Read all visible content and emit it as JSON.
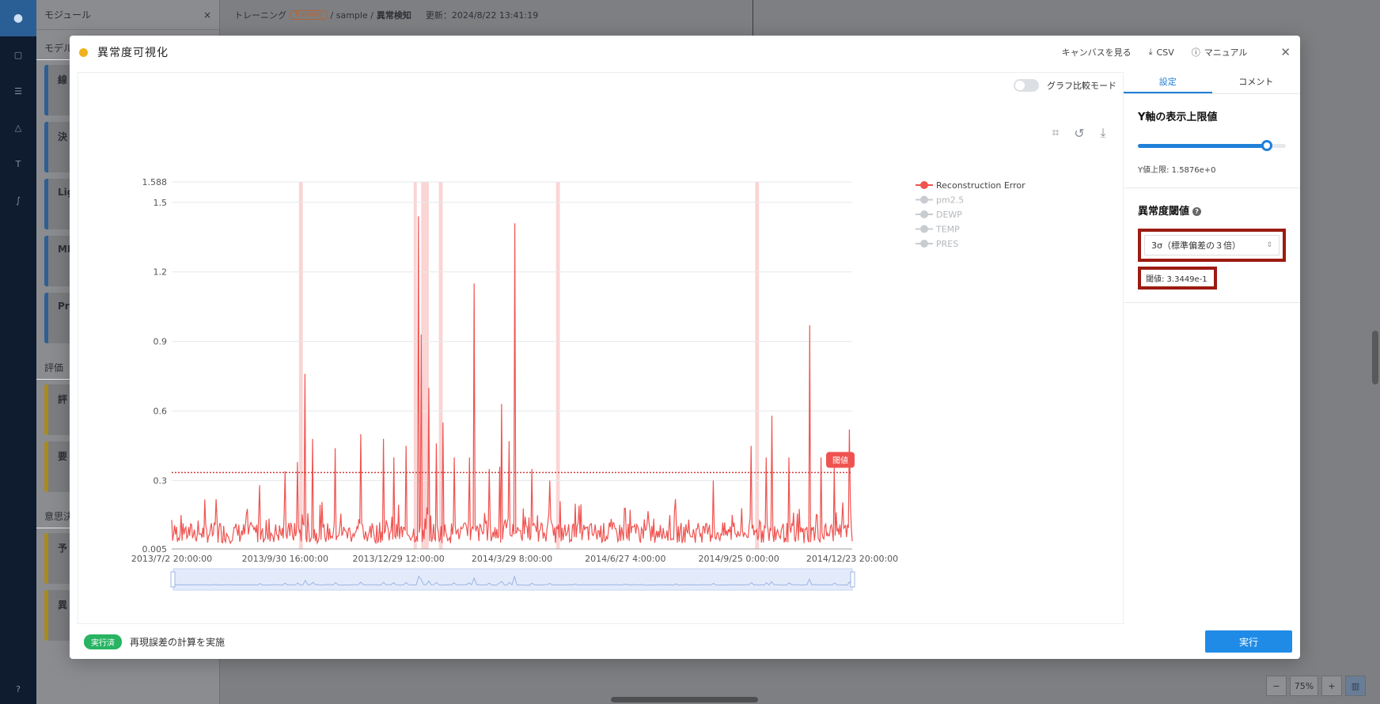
{
  "bg": {
    "sidebar_title": "モジュール",
    "section_model": "モデル",
    "model_cards": [
      "線",
      "決",
      "Lig",
      "ML",
      "Pr"
    ],
    "section_eval": "評価",
    "eval_cards": [
      "評",
      "要"
    ],
    "section_decision": "意思決",
    "decision_cards": [
      "予",
      "異"
    ],
    "breadcrumb_training": "トレーニング",
    "breadcrumb_badge": "Training",
    "breadcrumb_sample": "/ sample /",
    "breadcrumb_current": "異常検知",
    "updated": "更新：2024/8/22 13:41:19",
    "zoom_minus": "−",
    "zoom_pct": "75%",
    "zoom_plus": "+"
  },
  "modal": {
    "title": "異常度可視化",
    "actions": {
      "canvas": "キャンバスを見る",
      "csv": "CSV",
      "manual": "マニュアル"
    },
    "compare_mode": "グラフ比較モード",
    "tabs": [
      "設定",
      "コメント"
    ],
    "ylimit_title": "Y軸の表示上限値",
    "ylimit_value": 0.97,
    "ylimit_label": "Y値上限: 1.5876e+0",
    "threshold_title": "異常度閾値",
    "threshold_select": "3σ（標準偏差の３倍）",
    "threshold_value_label": "閾値: 3.3449e-1",
    "status_badge": "実行済",
    "status_text": "再現誤差の計算を実施",
    "run_button": "実行"
  },
  "chart_data": {
    "type": "line",
    "y_ticks": [
      0.005,
      0.3,
      0.6,
      0.9,
      1.2,
      1.5,
      1.588
    ],
    "y_tick_labels": [
      "0.005",
      "0.3",
      "0.6",
      "0.9",
      "1.2",
      "1.5",
      "1.588"
    ],
    "ylim": [
      0.005,
      1.588
    ],
    "x_tick_labels": [
      "2013/7/2 20:00:00",
      "2013/9/30 16:00:00",
      "2013/12/29 12:00:00",
      "2014/3/29 8:00:00",
      "2014/6/27 4:00:00",
      "2014/9/25 0:00:00",
      "2014/12/23 20:00:00"
    ],
    "x_range_days": [
      0,
      540
    ],
    "threshold": 0.33449,
    "threshold_label": "閾値",
    "legend": [
      "Reconstruction Error",
      "pm2.5",
      "DEWP",
      "TEMP",
      "PRES"
    ],
    "series": [
      {
        "name": "Reconstruction Error",
        "color": "#ef5350",
        "baseline": [
          0.03,
          0.12
        ],
        "peaks": [
          {
            "x": 0,
            "y": 0.13
          },
          {
            "x": 35,
            "y": 0.22
          },
          {
            "x": 70,
            "y": 0.28
          },
          {
            "x": 90,
            "y": 0.34
          },
          {
            "x": 100,
            "y": 0.38
          },
          {
            "x": 106,
            "y": 0.76
          },
          {
            "x": 112,
            "y": 0.48
          },
          {
            "x": 130,
            "y": 0.44
          },
          {
            "x": 150,
            "y": 0.5
          },
          {
            "x": 168,
            "y": 0.48
          },
          {
            "x": 176,
            "y": 0.4
          },
          {
            "x": 186,
            "y": 0.45
          },
          {
            "x": 196,
            "y": 1.44
          },
          {
            "x": 198,
            "y": 0.93
          },
          {
            "x": 204,
            "y": 0.7
          },
          {
            "x": 210,
            "y": 0.46
          },
          {
            "x": 215,
            "y": 0.55
          },
          {
            "x": 224,
            "y": 0.4
          },
          {
            "x": 236,
            "y": 0.4
          },
          {
            "x": 240,
            "y": 1.15
          },
          {
            "x": 252,
            "y": 0.35
          },
          {
            "x": 260,
            "y": 0.36
          },
          {
            "x": 262,
            "y": 0.63
          },
          {
            "x": 268,
            "y": 0.47
          },
          {
            "x": 272,
            "y": 1.41
          },
          {
            "x": 286,
            "y": 0.35
          },
          {
            "x": 300,
            "y": 0.3
          },
          {
            "x": 320,
            "y": 0.2
          },
          {
            "x": 360,
            "y": 0.18
          },
          {
            "x": 400,
            "y": 0.22
          },
          {
            "x": 430,
            "y": 0.3
          },
          {
            "x": 460,
            "y": 0.45
          },
          {
            "x": 472,
            "y": 0.4
          },
          {
            "x": 476,
            "y": 0.58
          },
          {
            "x": 490,
            "y": 0.4
          },
          {
            "x": 506,
            "y": 0.97
          },
          {
            "x": 515,
            "y": 0.4
          },
          {
            "x": 526,
            "y": 0.36
          },
          {
            "x": 538,
            "y": 0.52
          }
        ]
      }
    ],
    "anomaly_bands_days": [
      [
        101,
        104
      ],
      [
        192,
        194
      ],
      [
        198,
        204
      ],
      [
        212,
        215
      ],
      [
        305,
        308
      ],
      [
        463,
        466
      ]
    ]
  }
}
